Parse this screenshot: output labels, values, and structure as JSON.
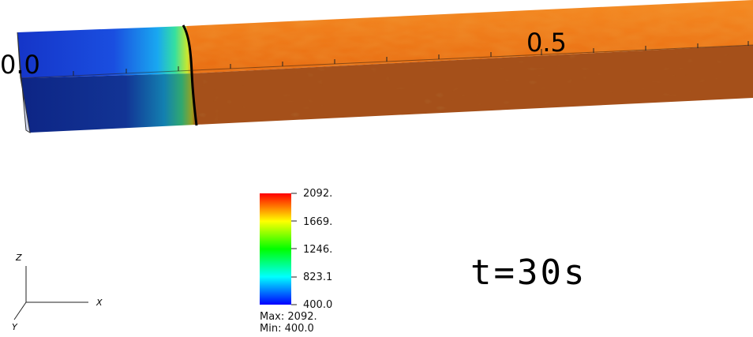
{
  "scene": {
    "axis_ticks": {
      "start": "0.0",
      "mid": "0.5"
    },
    "time_label": "t=30s",
    "colors": {
      "cold": "#1237c8",
      "hot_top": "#f07a18",
      "hot_side": "#a8521a",
      "front_line": "#000000"
    }
  },
  "legend": {
    "labels": [
      "2092.",
      "1669.",
      "1246.",
      "823.1",
      "400.0"
    ],
    "max_label": "Max:",
    "max_value": "2092.",
    "min_label": "Min:",
    "min_value": "400.0",
    "gradient": [
      "#0000ff",
      "#00ffff",
      "#00ff00",
      "#ffff00",
      "#ff0000"
    ]
  },
  "orientation_axes": {
    "x": "X",
    "y": "Y",
    "z": "Z"
  }
}
